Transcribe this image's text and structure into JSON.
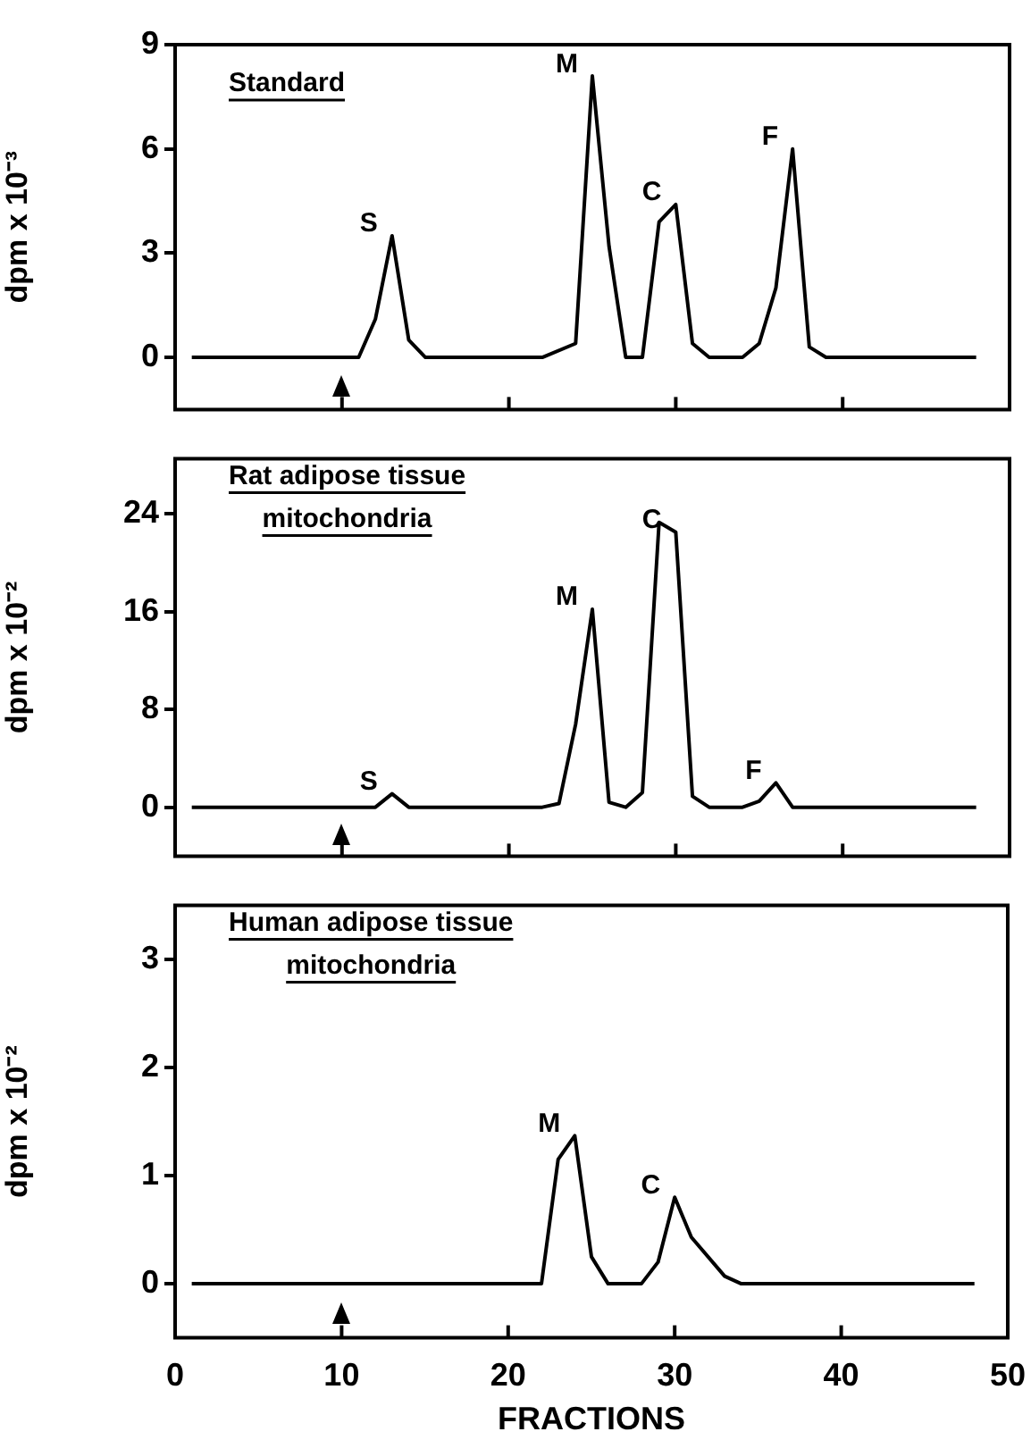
{
  "chart_data": [
    {
      "type": "line",
      "title": "Standard",
      "ylabel": "dpm x 10⁻³",
      "color": "#000000",
      "x": [
        1,
        11,
        12,
        13,
        14,
        15,
        22,
        24,
        25,
        26,
        27,
        28,
        29,
        30,
        31,
        32,
        34,
        35,
        36,
        37,
        38,
        39,
        48
      ],
      "values": [
        0,
        0,
        1.1,
        3.5,
        0.5,
        0,
        0,
        0.4,
        8.1,
        3.2,
        0,
        0,
        3.9,
        4.4,
        0.4,
        0,
        0,
        0.4,
        2.0,
        6.0,
        0.3,
        0,
        0
      ],
      "xlim": [
        0,
        50
      ],
      "xticks": [
        0,
        10,
        20,
        30,
        40,
        50
      ],
      "ylim": [
        -1.5,
        9
      ],
      "yticks": [
        0,
        3,
        6,
        9
      ],
      "tick_labels": "y",
      "annotations": [
        {
          "text": "S",
          "x": 13,
          "y": 3.5
        },
        {
          "text": "M",
          "x": 25,
          "y": 8.1
        },
        {
          "text": "C",
          "x": 30,
          "y": 4.4
        },
        {
          "text": "F",
          "x": 37,
          "y": 6.0
        }
      ]
    },
    {
      "type": "line",
      "title": "Rat adipose tissue\nmitochondria",
      "ylabel": "dpm x 10⁻²",
      "color": "#000000",
      "x": [
        1,
        12,
        13,
        14,
        22,
        23,
        24,
        25,
        26,
        27,
        28,
        29,
        30,
        31,
        32,
        34,
        35,
        36,
        37,
        48
      ],
      "values": [
        0,
        0,
        1.1,
        0,
        0,
        0.3,
        6.8,
        16.2,
        0.4,
        0,
        1.2,
        23.3,
        22.5,
        0.9,
        0,
        0,
        0.5,
        2.0,
        0,
        0
      ],
      "xlim": [
        0,
        50
      ],
      "xticks": [
        0,
        10,
        20,
        30,
        40,
        50
      ],
      "ylim": [
        -4,
        28.5
      ],
      "yticks": [
        0,
        8,
        16,
        24
      ],
      "tick_labels": "y",
      "annotations": [
        {
          "text": "S",
          "x": 13,
          "y": 1.1
        },
        {
          "text": "M",
          "x": 25,
          "y": 16.2
        },
        {
          "text": "C",
          "x": 30,
          "y": 22.5
        },
        {
          "text": "F",
          "x": 36,
          "y": 2.0
        }
      ]
    },
    {
      "type": "line",
      "title": "Human adipose tissue\nmitochondria",
      "ylabel": "dpm x 10⁻²",
      "xlabel": "FRACTIONS",
      "color": "#000000",
      "x": [
        1,
        22,
        23,
        24,
        25,
        26,
        28,
        29,
        30,
        31,
        33,
        34,
        48
      ],
      "values": [
        0,
        0,
        1.15,
        1.37,
        0.25,
        0,
        0,
        0.2,
        0.8,
        0.43,
        0.07,
        0,
        0
      ],
      "xlim": [
        0,
        50
      ],
      "xticks": [
        0,
        10,
        20,
        30,
        40,
        50
      ],
      "ylim": [
        -0.5,
        3.5
      ],
      "yticks": [
        0,
        1,
        2,
        3
      ],
      "annotations": [
        {
          "text": "M",
          "x": 24,
          "y": 1.37
        },
        {
          "text": "C",
          "x": 30,
          "y": 0.8
        }
      ]
    }
  ]
}
